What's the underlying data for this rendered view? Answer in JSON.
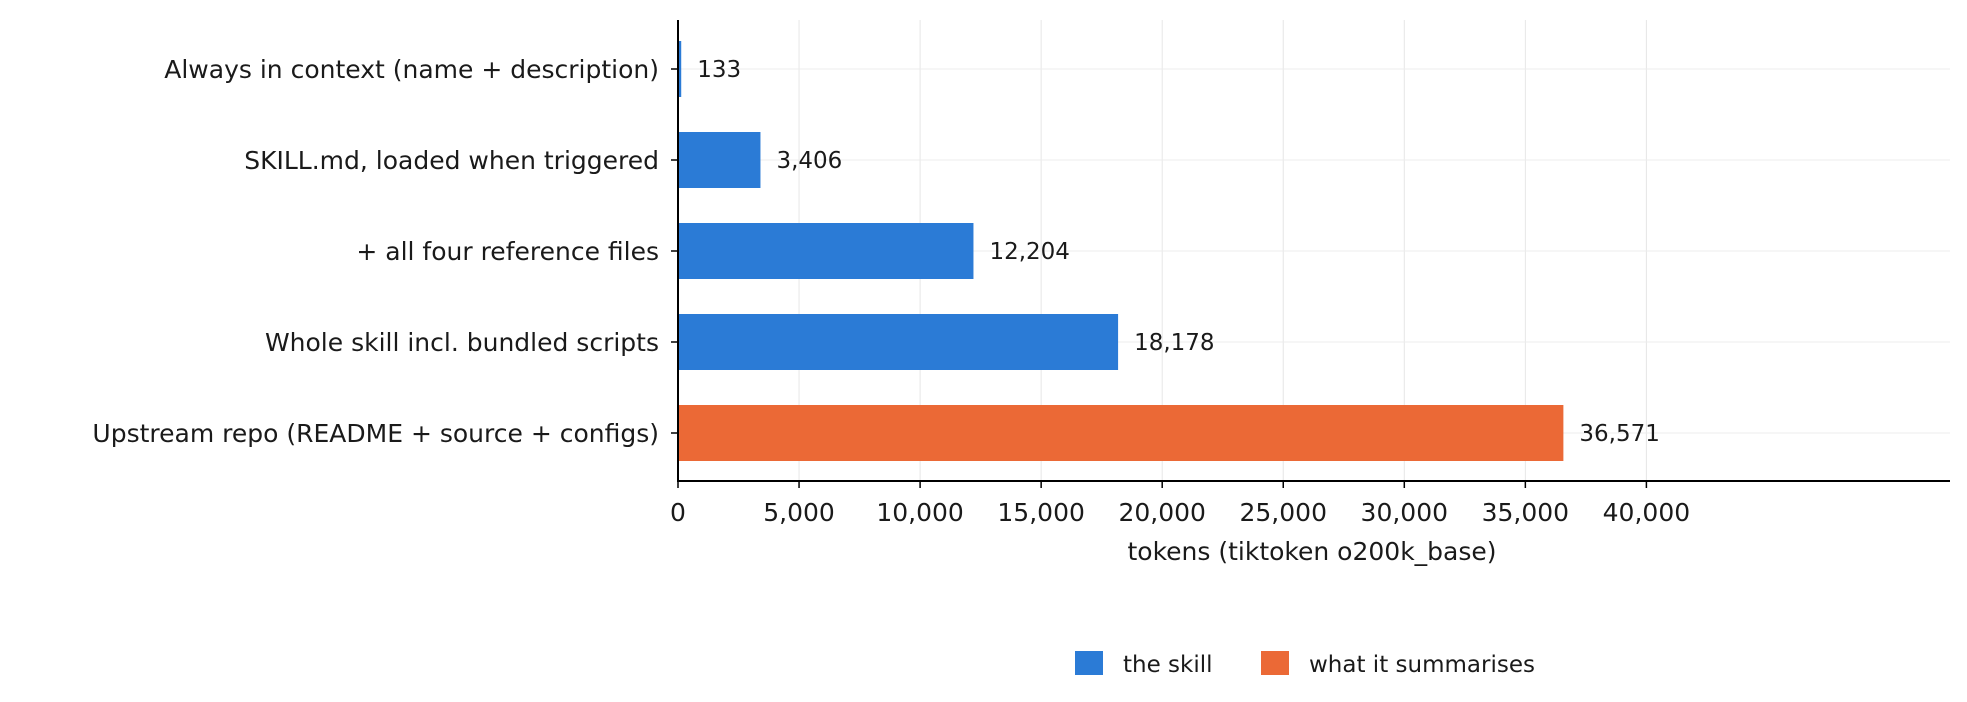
{
  "chart_data": {
    "type": "bar",
    "orientation": "horizontal",
    "categories": [
      "Always in context (name + description)",
      "SKILL.md, loaded when triggered",
      "+ all four reference files",
      "Whole skill incl. bundled scripts",
      "Upstream repo (README + source + configs)"
    ],
    "values": [
      133,
      3406,
      12204,
      18178,
      36571
    ],
    "value_labels": [
      "133",
      "3,406",
      "12,204",
      "18,178",
      "36,571"
    ],
    "bar_series": [
      0,
      0,
      0,
      0,
      1
    ],
    "series": [
      {
        "name": "the skill",
        "color": "#2b7bd6"
      },
      {
        "name": "what it summarises",
        "color": "#eb6936"
      }
    ],
    "title": "",
    "xlabel": "tokens (tiktoken o200k_base)",
    "ylabel": "",
    "xlim": [
      0,
      42000
    ],
    "xticks": [
      0,
      5000,
      10000,
      15000,
      20000,
      25000,
      30000,
      35000,
      40000
    ],
    "xtick_labels": [
      "0",
      "5,000",
      "10,000",
      "15,000",
      "20,000",
      "25,000",
      "30,000",
      "35,000",
      "40,000"
    ],
    "grid": true,
    "legend_position": "bottom-center"
  }
}
